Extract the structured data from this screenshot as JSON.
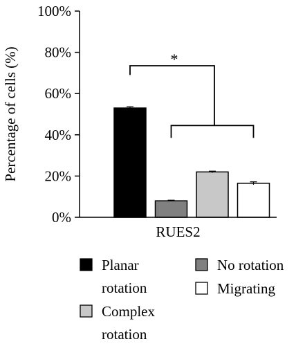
{
  "chart_data": {
    "type": "bar",
    "title": "",
    "xlabel": "",
    "ylabel": "Percentage of cells (%)",
    "categories": [
      "RUES2"
    ],
    "ylim": [
      0,
      100
    ],
    "yticks": [
      0,
      20,
      40,
      60,
      80,
      100
    ],
    "ytick_labels": [
      "0%",
      "20%",
      "40%",
      "60%",
      "80%",
      "100%"
    ],
    "grid": false,
    "series": [
      {
        "name": "Planar rotation",
        "legend_lines": [
          "Planar",
          "rotation"
        ],
        "values": [
          53
        ],
        "error": [
          0.6
        ],
        "color": "#000000"
      },
      {
        "name": "No rotation",
        "legend_lines": [
          "No rotation"
        ],
        "values": [
          8
        ],
        "error": [
          0.3
        ],
        "color": "#808080"
      },
      {
        "name": "Complex rotation",
        "legend_lines": [
          "Complex",
          "rotation"
        ],
        "values": [
          22
        ],
        "error": [
          0.4
        ],
        "color": "#c8c8c8"
      },
      {
        "name": "Migrating",
        "legend_lines": [
          "Migrating"
        ],
        "values": [
          16.5
        ],
        "error": [
          0.7
        ],
        "color": "#ffffff"
      }
    ],
    "annotations": [
      {
        "label": "*",
        "compares": "Planar rotation vs. No rotation, Complex rotation, Migrating"
      }
    ],
    "legend_position": "bottom"
  }
}
